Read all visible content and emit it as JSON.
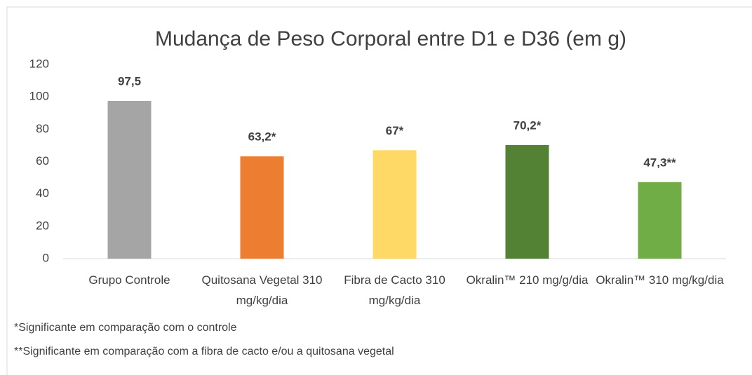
{
  "chart_data": {
    "type": "bar",
    "title": "Mudança de Peso Corporal entre D1 e D36 (em g)",
    "categories": [
      "Grupo Controle",
      "Quitosana Vegetal 310 mg/kg/dia",
      "Fibra de Cacto 310 mg/kg/dia",
      "Okralin™  210 mg/g/dia",
      "Okralin™ 310 mg/kg/dia"
    ],
    "values": [
      97.5,
      63.2,
      67,
      70.2,
      47.3
    ],
    "value_labels": [
      "97,5",
      "63,2*",
      "67*",
      "70,2*",
      "47,3**"
    ],
    "colors": [
      "#a5a5a5",
      "#ed7d31",
      "#ffd966",
      "#548235",
      "#70ad47"
    ],
    "ylim": [
      0,
      120
    ],
    "yticks": [
      0,
      20,
      40,
      60,
      80,
      100,
      120
    ],
    "grid": false,
    "notes": [
      "*Significante em comparação com o controle",
      "**Significante em comparação com a fibra de cacto e/ou a quitosana vegetal"
    ]
  }
}
